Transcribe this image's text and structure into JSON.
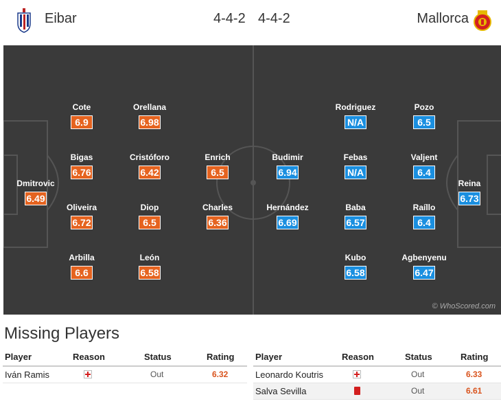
{
  "header": {
    "home_team": "Eibar",
    "home_formation": "4-4-2",
    "away_formation": "4-4-2",
    "away_team": "Mallorca"
  },
  "colors": {
    "home_rating": "#e5631f",
    "away_rating": "#1a8fe0",
    "pitch": "#3a3a3a"
  },
  "home_players": [
    {
      "name": "Cote",
      "rating": "6.9"
    },
    {
      "name": "Orellana",
      "rating": "6.98"
    },
    {
      "name": "Bigas",
      "rating": "6.76"
    },
    {
      "name": "Cristóforo",
      "rating": "6.42"
    },
    {
      "name": "Enrich",
      "rating": "6.5"
    },
    {
      "name": "Dmitrovic",
      "rating": "6.49"
    },
    {
      "name": "Oliveira",
      "rating": "6.72"
    },
    {
      "name": "Diop",
      "rating": "6.5"
    },
    {
      "name": "Charles",
      "rating": "6.36"
    },
    {
      "name": "Arbilla",
      "rating": "6.6"
    },
    {
      "name": "León",
      "rating": "6.58"
    }
  ],
  "away_players": [
    {
      "name": "Rodriguez",
      "rating": "N/A"
    },
    {
      "name": "Pozo",
      "rating": "6.5"
    },
    {
      "name": "Budimir",
      "rating": "6.94"
    },
    {
      "name": "Febas",
      "rating": "N/A"
    },
    {
      "name": "Valjent",
      "rating": "6.4"
    },
    {
      "name": "Reina",
      "rating": "6.73"
    },
    {
      "name": "Hernández",
      "rating": "6.69"
    },
    {
      "name": "Baba",
      "rating": "6.57"
    },
    {
      "name": "Raíllo",
      "rating": "6.4"
    },
    {
      "name": "Kubo",
      "rating": "6.58"
    },
    {
      "name": "Agbenyenu",
      "rating": "6.47"
    }
  ],
  "watermark": "© WhoScored.com",
  "missing": {
    "title": "Missing Players",
    "columns": {
      "player": "Player",
      "reason": "Reason",
      "status": "Status",
      "rating": "Rating"
    },
    "home": [
      {
        "player": "Iván Ramis",
        "reason_icon": "injury-icon",
        "status": "Out",
        "rating": "6.32"
      }
    ],
    "away": [
      {
        "player": "Leonardo Koutris",
        "reason_icon": "injury-icon",
        "status": "Out",
        "rating": "6.33"
      },
      {
        "player": "Salva Sevilla",
        "reason_icon": "red-card-icon",
        "status": "Out",
        "rating": "6.61"
      }
    ]
  }
}
